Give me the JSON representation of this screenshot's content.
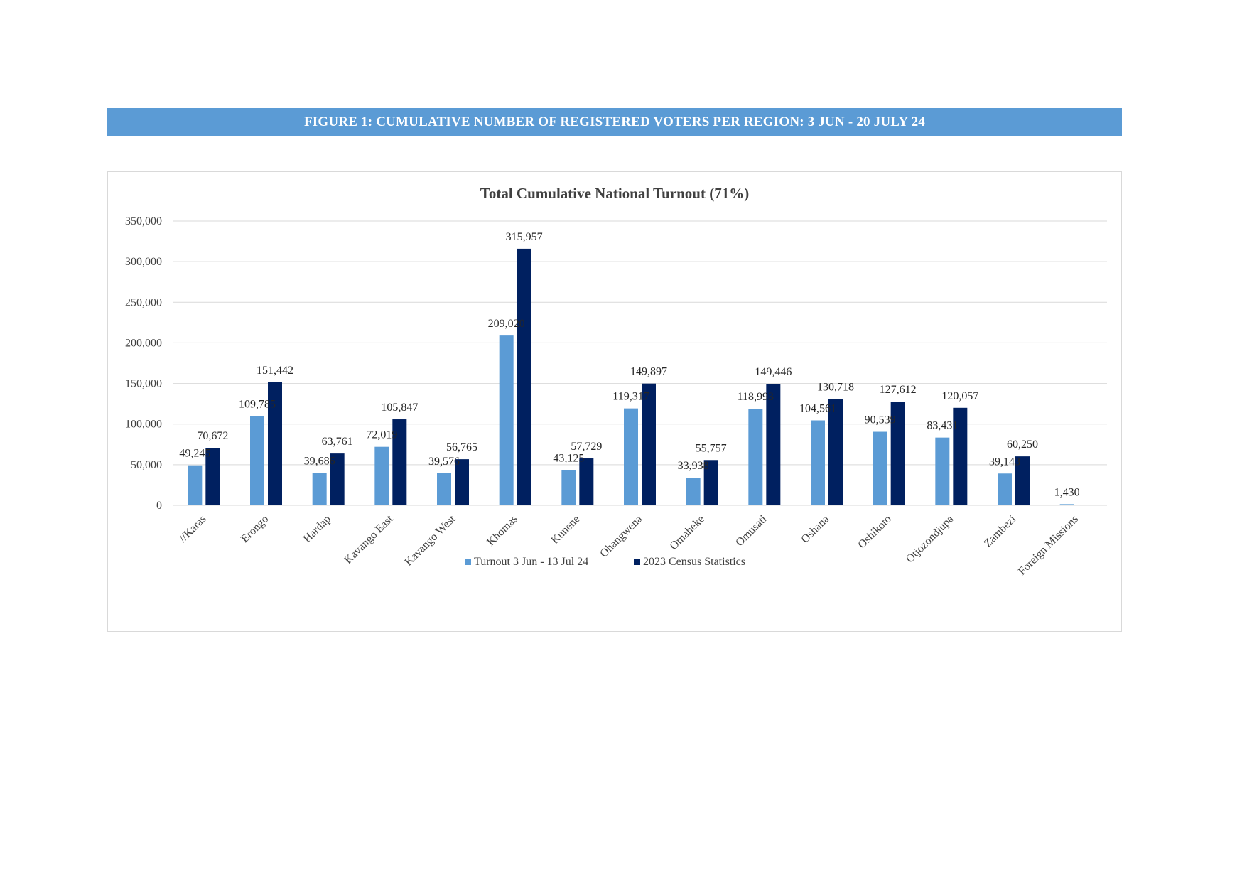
{
  "figure_banner": "FIGURE 1: CUMULATIVE NUMBER OF REGISTERED VOTERS PER REGION: 3 JUN - 20 JULY 24",
  "colors": {
    "banner": "#5b9bd5",
    "turnout": "#5b9bd5",
    "census": "#002060",
    "gridline": "#d9d9d9"
  },
  "chart_data": {
    "type": "bar",
    "title": "Total Cumulative National Turnout (71%)",
    "xlabel": "",
    "ylabel": "",
    "ylim": [
      0,
      350000
    ],
    "yticks": [
      0,
      50000,
      100000,
      150000,
      200000,
      250000,
      300000,
      350000
    ],
    "ytick_labels": [
      "0",
      "50,000",
      "100,000",
      "150,000",
      "200,000",
      "250,000",
      "300,000",
      "350,000"
    ],
    "grid": true,
    "legend_position": "bottom",
    "categories": [
      "//Karas",
      "Erongo",
      "Hardap",
      "Kavango East",
      "Kavango West",
      "Khomas",
      "Kunene",
      "Ohangwena",
      "Omaheke",
      "Omusati",
      "Oshana",
      "Oshikoto",
      "Otjozondjupa",
      "Zambezi",
      "Foreign Missions"
    ],
    "series": [
      {
        "name": "Turnout 3 Jun - 13 Jul 24",
        "values": [
          49245,
          109785,
          39686,
          72019,
          39576,
          209020,
          43125,
          119317,
          33938,
          118993,
          104561,
          90539,
          83431,
          39143,
          1430
        ],
        "labels": [
          "49,245",
          "109,785",
          "39,686",
          "72,019",
          "39,576",
          "209,020",
          "43,125",
          "119,317",
          "33,938",
          "118,993",
          "104,561",
          "90,539",
          "83,431",
          "39,143",
          "1,430"
        ]
      },
      {
        "name": "2023 Census Statistics",
        "values": [
          70672,
          151442,
          63761,
          105847,
          56765,
          315957,
          57729,
          149897,
          55757,
          149446,
          130718,
          127612,
          120057,
          60250,
          null
        ],
        "labels": [
          "70,672",
          "151,442",
          "63,761",
          "105,847",
          "56,765",
          "315,957",
          "57,729",
          "149,897",
          "55,757",
          "149,446",
          "130,718",
          "127,612",
          "120,057",
          "60,250",
          ""
        ]
      }
    ]
  }
}
